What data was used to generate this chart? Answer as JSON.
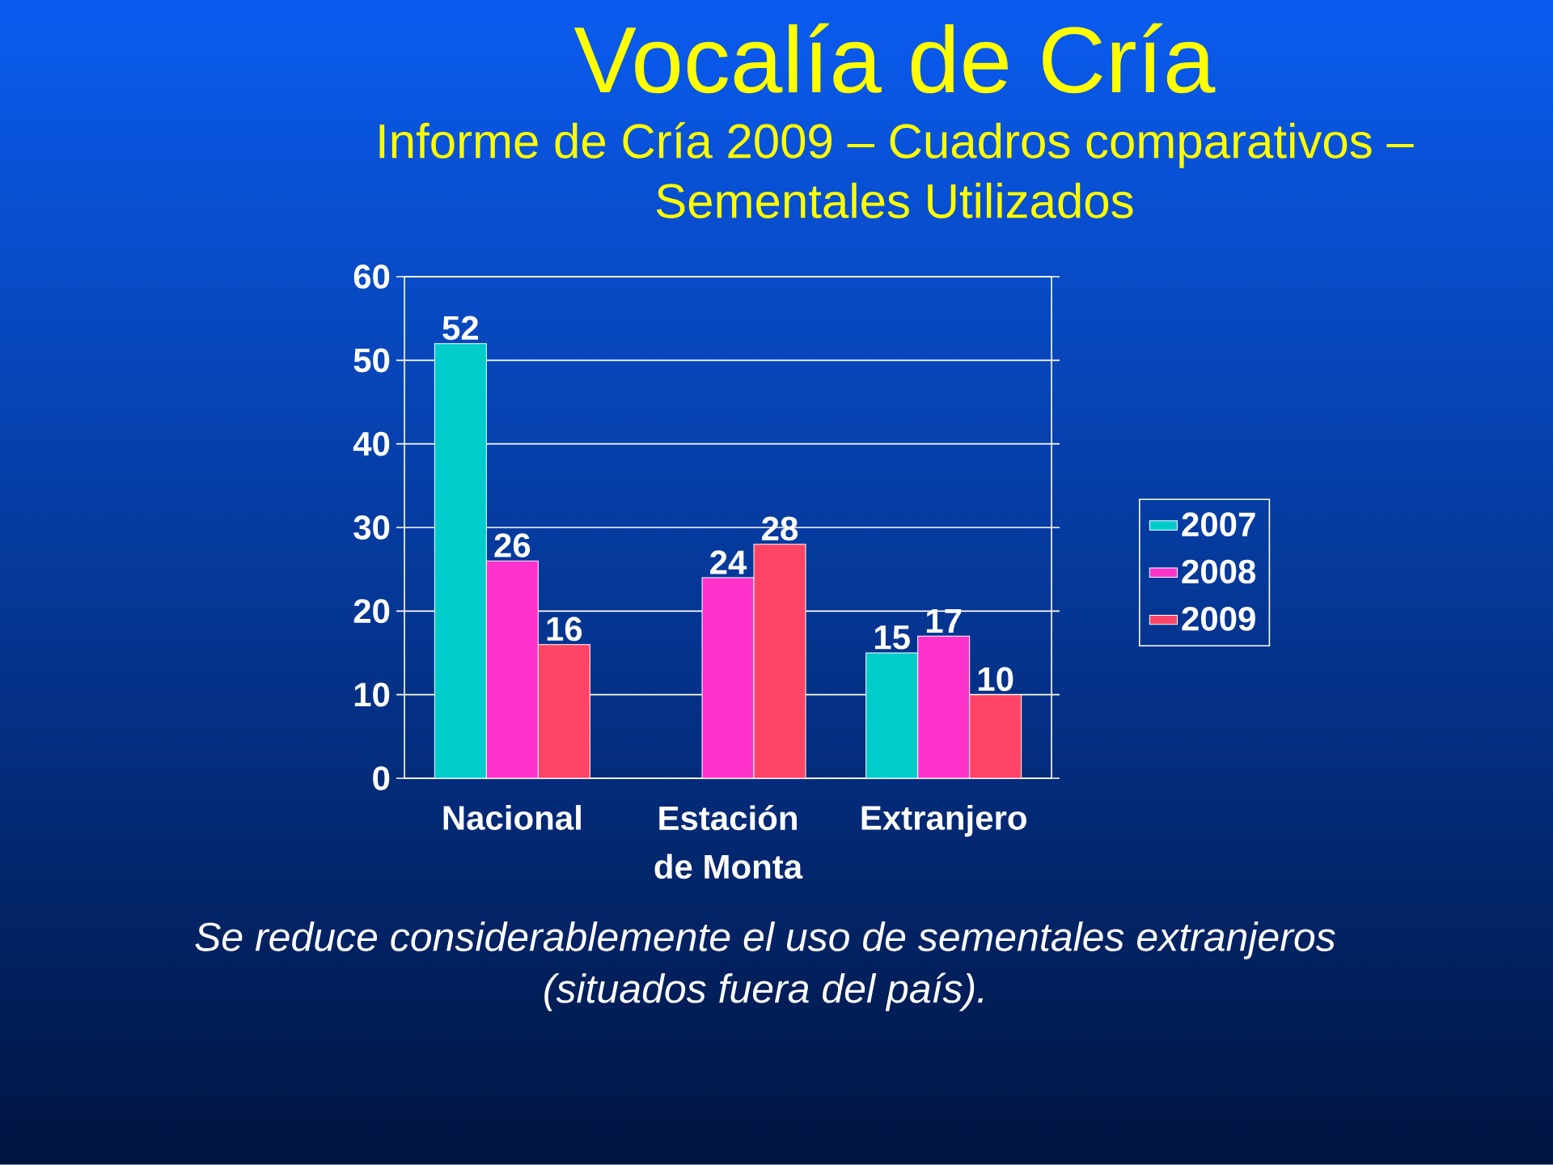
{
  "chart_data": {
    "type": "bar",
    "title": "Vocalía de Cría",
    "subtitle": "Informe de Cría 2009 – Cuadros comparativos – Sementales Utilizados",
    "categories": [
      "Nacional",
      "Estación de Monta",
      "Extranjero"
    ],
    "series": [
      {
        "name": "2007",
        "color": "#00cccc",
        "values": [
          52,
          null,
          15
        ]
      },
      {
        "name": "2008",
        "color": "#ff33cc",
        "values": [
          26,
          24,
          17
        ]
      },
      {
        "name": "2009",
        "color": "#ff4466",
        "values": [
          16,
          28,
          10
        ]
      }
    ],
    "ylim": [
      0,
      60
    ],
    "yticks": [
      0,
      10,
      20,
      30,
      40,
      50,
      60
    ],
    "grid": "y",
    "legend": "right",
    "data_labels": true,
    "annotations": [
      "Se reduce considerablemente el uso de sementales extranjeros (situados fuera del país)."
    ]
  }
}
